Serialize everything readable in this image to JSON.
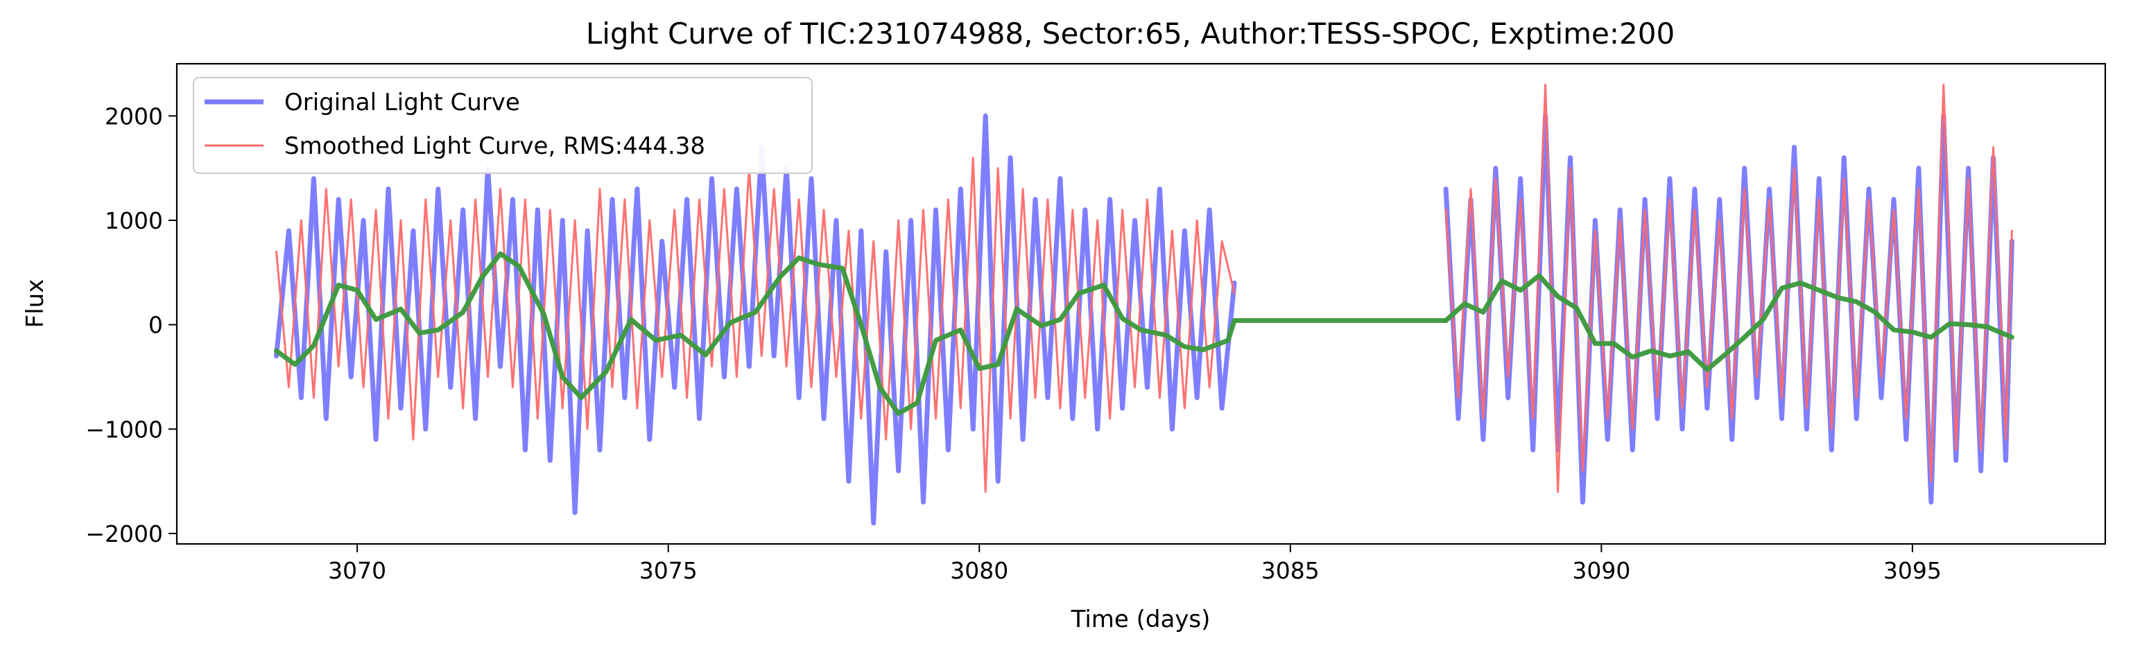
{
  "chart_data": {
    "type": "line",
    "title": "Light Curve of TIC:231074988, Sector:65, Author:TESS-SPOC, Exptime:200",
    "xlabel": "Time (days)",
    "ylabel": "Flux",
    "xlim": [
      3067.1,
      3098.1
    ],
    "ylim": [
      -2100,
      2500
    ],
    "xticks": [
      3070,
      3075,
      3080,
      3085,
      3090,
      3095
    ],
    "yticks": [
      -2000,
      -1000,
      0,
      1000,
      2000
    ],
    "grid": false,
    "legend_position": "upper-left",
    "series": [
      {
        "name": "Original Light Curve",
        "color": "#7b7bff",
        "segments": [
          {
            "x": [
              3068.7,
              3068.9,
              3069.1,
              3069.3,
              3069.5,
              3069.7,
              3069.9,
              3070.1,
              3070.3,
              3070.5,
              3070.7,
              3070.9,
              3071.1,
              3071.3,
              3071.5,
              3071.7,
              3071.9,
              3072.1,
              3072.3,
              3072.5,
              3072.7,
              3072.9,
              3073.1,
              3073.3,
              3073.5,
              3073.7,
              3073.9,
              3074.1,
              3074.3,
              3074.5,
              3074.7,
              3074.9,
              3075.1,
              3075.3,
              3075.5,
              3075.7,
              3075.9,
              3076.1,
              3076.3,
              3076.5,
              3076.7,
              3076.9,
              3077.1,
              3077.3,
              3077.5,
              3077.7,
              3077.9,
              3078.1,
              3078.3,
              3078.5,
              3078.7,
              3078.9,
              3079.1,
              3079.3,
              3079.5,
              3079.7,
              3079.9,
              3080.1,
              3080.3,
              3080.5,
              3080.7,
              3080.9,
              3081.1,
              3081.3,
              3081.5,
              3081.7,
              3081.9,
              3082.1,
              3082.3,
              3082.5,
              3082.7,
              3082.9,
              3083.1,
              3083.3,
              3083.5,
              3083.7,
              3083.9,
              3084.1
            ],
            "y": [
              -300,
              900,
              -700,
              1400,
              -900,
              1200,
              -500,
              1000,
              -1100,
              1300,
              -800,
              900,
              -1000,
              1300,
              -600,
              1100,
              -900,
              1500,
              -400,
              1200,
              -1200,
              1100,
              -1300,
              1000,
              -1800,
              900,
              -1200,
              1200,
              -700,
              1300,
              -1100,
              800,
              -600,
              1200,
              -900,
              1400,
              -500,
              1300,
              -400,
              1700,
              -300,
              1500,
              -700,
              1400,
              -900,
              1000,
              -1500,
              900,
              -1900,
              700,
              -1400,
              1000,
              -1700,
              1100,
              -1200,
              1300,
              -1000,
              2000,
              -1500,
              1600,
              -1100,
              1200,
              -700,
              1400,
              -900,
              1100,
              -1000,
              1200,
              -800,
              1000,
              -600,
              1300,
              -1000,
              900,
              -700,
              1100,
              -800,
              400
            ]
          },
          {
            "x": [
              3087.5,
              3087.7,
              3087.9,
              3088.1,
              3088.3,
              3088.5,
              3088.7,
              3088.9,
              3089.1,
              3089.3,
              3089.5,
              3089.7,
              3089.9,
              3090.1,
              3090.3,
              3090.5,
              3090.7,
              3090.9,
              3091.1,
              3091.3,
              3091.5,
              3091.7,
              3091.9,
              3092.1,
              3092.3,
              3092.5,
              3092.7,
              3092.9,
              3093.1,
              3093.3,
              3093.5,
              3093.7,
              3093.9,
              3094.1,
              3094.3,
              3094.5,
              3094.7,
              3094.9,
              3095.1,
              3095.3,
              3095.5,
              3095.7,
              3095.9,
              3096.1,
              3096.3,
              3096.5,
              3096.6
            ],
            "y": [
              1300,
              -900,
              1200,
              -1100,
              1500,
              -700,
              1400,
              -1200,
              2000,
              -1200,
              1600,
              -1700,
              1000,
              -1100,
              1100,
              -1200,
              1200,
              -900,
              1400,
              -1000,
              1300,
              -800,
              1200,
              -1100,
              1500,
              -700,
              1300,
              -900,
              1700,
              -1000,
              1400,
              -1200,
              1600,
              -900,
              1300,
              -700,
              1200,
              -1100,
              1500,
              -1700,
              2000,
              -1300,
              1500,
              -1400,
              1600,
              -1300,
              800
            ]
          }
        ]
      },
      {
        "name": "Smoothed Light Curve, RMS:444.38",
        "color": "#ff6a6a",
        "segments": [
          {
            "x": [
              3068.7,
              3068.9,
              3069.1,
              3069.3,
              3069.5,
              3069.7,
              3069.9,
              3070.1,
              3070.3,
              3070.5,
              3070.7,
              3070.9,
              3071.1,
              3071.3,
              3071.5,
              3071.7,
              3071.9,
              3072.1,
              3072.3,
              3072.5,
              3072.7,
              3072.9,
              3073.1,
              3073.3,
              3073.5,
              3073.7,
              3073.9,
              3074.1,
              3074.3,
              3074.5,
              3074.7,
              3074.9,
              3075.1,
              3075.3,
              3075.5,
              3075.7,
              3075.9,
              3076.1,
              3076.3,
              3076.5,
              3076.7,
              3076.9,
              3077.1,
              3077.3,
              3077.5,
              3077.7,
              3077.9,
              3078.1,
              3078.3,
              3078.5,
              3078.7,
              3078.9,
              3079.1,
              3079.3,
              3079.5,
              3079.7,
              3079.9,
              3080.1,
              3080.3,
              3080.5,
              3080.7,
              3080.9,
              3081.1,
              3081.3,
              3081.5,
              3081.7,
              3081.9,
              3082.1,
              3082.3,
              3082.5,
              3082.7,
              3082.9,
              3083.1,
              3083.3,
              3083.5,
              3083.7,
              3083.9,
              3084.1
            ],
            "y": [
              700,
              -600,
              1000,
              -700,
              1300,
              -400,
              1200,
              -600,
              1100,
              -900,
              1000,
              -1100,
              1200,
              -500,
              1000,
              -800,
              1200,
              -500,
              1300,
              -600,
              1200,
              -900,
              1100,
              -800,
              1000,
              -1000,
              1300,
              -600,
              1200,
              -800,
              1000,
              -500,
              1100,
              -700,
              1200,
              -400,
              1300,
              -500,
              1500,
              -300,
              1300,
              -400,
              1200,
              -600,
              1100,
              -500,
              900,
              -900,
              800,
              -1100,
              1000,
              -1000,
              1100,
              -900,
              1200,
              -800,
              1600,
              -1600,
              1500,
              -900,
              1300,
              -700,
              1200,
              -800,
              1100,
              -700,
              1000,
              -900,
              1100,
              -600,
              1200,
              -700,
              900,
              -800,
              1000,
              -600,
              800,
              300
            ]
          },
          {
            "x": [
              3087.5,
              3087.7,
              3087.9,
              3088.1,
              3088.3,
              3088.5,
              3088.7,
              3088.9,
              3089.1,
              3089.3,
              3089.5,
              3089.7,
              3089.9,
              3090.1,
              3090.3,
              3090.5,
              3090.7,
              3090.9,
              3091.1,
              3091.3,
              3091.5,
              3091.7,
              3091.9,
              3092.1,
              3092.3,
              3092.5,
              3092.7,
              3092.9,
              3093.1,
              3093.3,
              3093.5,
              3093.7,
              3093.9,
              3094.1,
              3094.3,
              3094.5,
              3094.7,
              3094.9,
              3095.1,
              3095.3,
              3095.5,
              3095.7,
              3095.9,
              3096.1,
              3096.3,
              3096.5,
              3096.6
            ],
            "y": [
              1100,
              -700,
              1300,
              -900,
              1400,
              -500,
              1200,
              -900,
              2300,
              -1600,
              1500,
              -1400,
              900,
              -900,
              1000,
              -1000,
              1100,
              -700,
              1200,
              -800,
              1100,
              -600,
              1000,
              -900,
              1300,
              -500,
              1200,
              -700,
              1500,
              -800,
              1200,
              -1000,
              1400,
              -700,
              1200,
              -500,
              1100,
              -900,
              1300,
              -1500,
              2300,
              -1200,
              1400,
              -1200,
              1700,
              -1100,
              900
            ]
          }
        ]
      },
      {
        "name": "",
        "color": "#3f9a3f",
        "segments": [
          {
            "x": [
              3068.7,
              3069.0,
              3069.3,
              3069.7,
              3070.0,
              3070.3,
              3070.7,
              3071.0,
              3071.3,
              3071.7,
              3072.0,
              3072.3,
              3072.6,
              3073.0,
              3073.3,
              3073.6,
              3074.0,
              3074.4,
              3074.8,
              3075.2,
              3075.6,
              3076.0,
              3076.4,
              3076.8,
              3077.1,
              3077.4,
              3077.8,
              3078.1,
              3078.4,
              3078.7,
              3079.0,
              3079.3,
              3079.7,
              3080.0,
              3080.3,
              3080.6,
              3081.0,
              3081.3,
              3081.6,
              3082.0,
              3082.3,
              3082.6,
              3083.0,
              3083.3,
              3083.6,
              3084.0,
              3084.1,
              3087.5
            ],
            "y": [
              -250,
              -380,
              -200,
              380,
              330,
              50,
              150,
              -80,
              -50,
              120,
              450,
              680,
              560,
              100,
              -500,
              -700,
              -450,
              50,
              -150,
              -100,
              -290,
              20,
              120,
              460,
              640,
              580,
              540,
              0,
              -600,
              -850,
              -750,
              -150,
              -50,
              -420,
              -380,
              150,
              -10,
              50,
              300,
              380,
              60,
              -50,
              -100,
              -210,
              -240,
              -150,
              40,
              40
            ]
          },
          {
            "x": [
              3087.5,
              3087.8,
              3088.1,
              3088.4,
              3088.7,
              3089.0,
              3089.3,
              3089.6,
              3089.9,
              3090.2,
              3090.5,
              3090.8,
              3091.1,
              3091.4,
              3091.7,
              3092.0,
              3092.3,
              3092.6,
              3092.9,
              3093.2,
              3093.5,
              3093.8,
              3094.1,
              3094.4,
              3094.7,
              3095.0,
              3095.3,
              3095.6,
              3095.9,
              3096.2,
              3096.6
            ],
            "y": [
              40,
              200,
              120,
              420,
              330,
              470,
              270,
              160,
              -180,
              -180,
              -310,
              -250,
              -300,
              -260,
              -430,
              -280,
              -120,
              50,
              350,
              400,
              330,
              260,
              220,
              120,
              -50,
              -70,
              -120,
              10,
              0,
              -20,
              -120
            ]
          }
        ]
      }
    ]
  }
}
